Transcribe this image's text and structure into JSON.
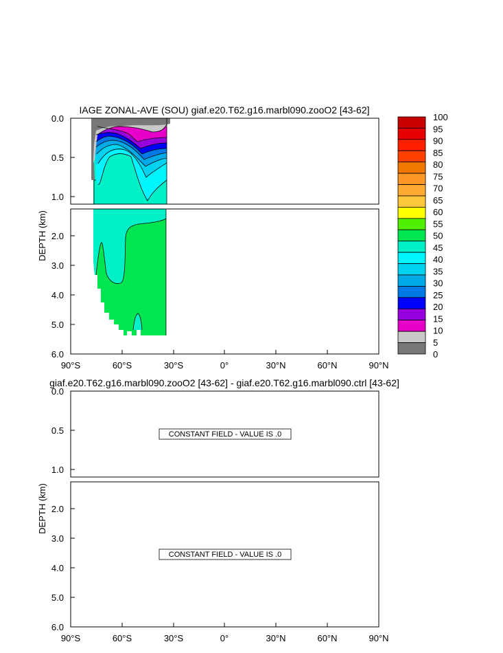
{
  "chart_data": [
    {
      "type": "contour",
      "title": "IAGE ZONAL-AVE (SOU) giaf.e20.T62.g16.marbl090.zooO2 [43-62]",
      "ylabel": "DEPTH (km)",
      "x_ticks": [
        "90°S",
        "60°S",
        "30°S",
        "0°",
        "30°N",
        "60°N",
        "90°N"
      ],
      "x_range": [
        -90,
        90
      ],
      "y_range_upper": [
        0,
        1.1
      ],
      "y_range_lower": [
        1.1,
        6.0
      ],
      "y_ticks_upper": [
        "0.0",
        "0.5",
        "1.0"
      ],
      "y_ticks_lower": [
        "2.0",
        "3.0",
        "4.0",
        "5.0",
        "6.0"
      ],
      "contour_levels": [
        0,
        5,
        10,
        15,
        20,
        25,
        30,
        35,
        40,
        45,
        50,
        55,
        60,
        65,
        70,
        75,
        80,
        85,
        90,
        95,
        100
      ],
      "colorbar": {
        "labels": [
          "100",
          "95",
          "90",
          "85",
          "80",
          "75",
          "70",
          "65",
          "60",
          "55",
          "50",
          "45",
          "40",
          "35",
          "30",
          "25",
          "20",
          "15",
          "10",
          "5",
          "0"
        ],
        "colors": [
          "#c80000",
          "#e60000",
          "#ff1e00",
          "#ff4100",
          "#f07800",
          "#ff9628",
          "#ffaa32",
          "#ffc83c",
          "#ffff00",
          "#50f000",
          "#00e650",
          "#00f0c8",
          "#00f5ff",
          "#00d2f0",
          "#00aae6",
          "#0078e6",
          "#0000ff",
          "#9600dc",
          "#e600c8",
          "#c8c8c8",
          "#787878"
        ]
      }
    },
    {
      "type": "contour",
      "title": "giaf.e20.T62.g16.marbl090.zooO2 [43-62] - giaf.e20.T62.g16.marbl090.ctrl [43-62]",
      "ylabel": "DEPTH (km)",
      "x_ticks": [
        "90°S",
        "60°S",
        "30°S",
        "0°",
        "30°N",
        "60°N",
        "90°N"
      ],
      "y_ticks_upper": [
        "0.0",
        "0.5",
        "1.0"
      ],
      "y_ticks_lower": [
        "2.0",
        "3.0",
        "4.0",
        "5.0",
        "6.0"
      ],
      "annotations": [
        "CONSTANT FIELD - VALUE IS .0",
        "CONSTANT FIELD - VALUE IS .0"
      ]
    }
  ]
}
